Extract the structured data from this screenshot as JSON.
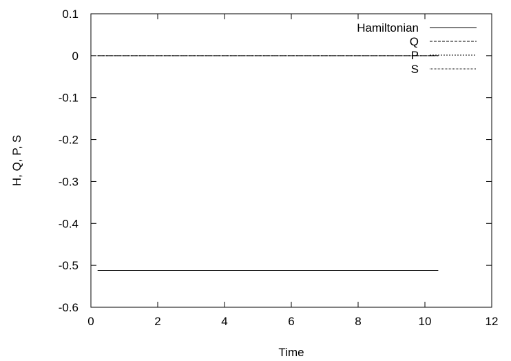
{
  "chart_data": {
    "type": "line",
    "title": "",
    "xlabel": "Time",
    "ylabel": "H, Q, P, S",
    "xlim": [
      0,
      12
    ],
    "ylim": [
      -0.6,
      0.1
    ],
    "xticks": [
      0,
      2,
      4,
      6,
      8,
      10,
      12
    ],
    "yticks": [
      0.1,
      0,
      -0.1,
      -0.2,
      -0.3,
      -0.4,
      -0.5,
      -0.6
    ],
    "xtick_labels": [
      "0",
      "2",
      "4",
      "6",
      "8",
      "10",
      "12"
    ],
    "ytick_labels": [
      "0.1",
      "0",
      "-0.1",
      "-0.2",
      "-0.3",
      "-0.4",
      "-0.5",
      "-0.6"
    ],
    "grid": false,
    "legend_position": "top-right",
    "series": [
      {
        "name": "Hamiltonian",
        "style": "solid",
        "color": "#000000",
        "x": [
          0.2,
          10.4
        ],
        "y": [
          -0.512,
          -0.512
        ]
      },
      {
        "name": "Q",
        "style": "dashed",
        "color": "#000000",
        "x": [
          0.2,
          10.4
        ],
        "y": [
          0,
          0
        ]
      },
      {
        "name": "P",
        "style": "dotted",
        "color": "#000000",
        "x": [
          0.2,
          10.4
        ],
        "y": [
          0,
          0
        ]
      },
      {
        "name": "S",
        "style": "fine-dotted",
        "color": "#000000",
        "x": [
          0.2,
          10.4
        ],
        "y": [
          0,
          0
        ]
      }
    ]
  }
}
